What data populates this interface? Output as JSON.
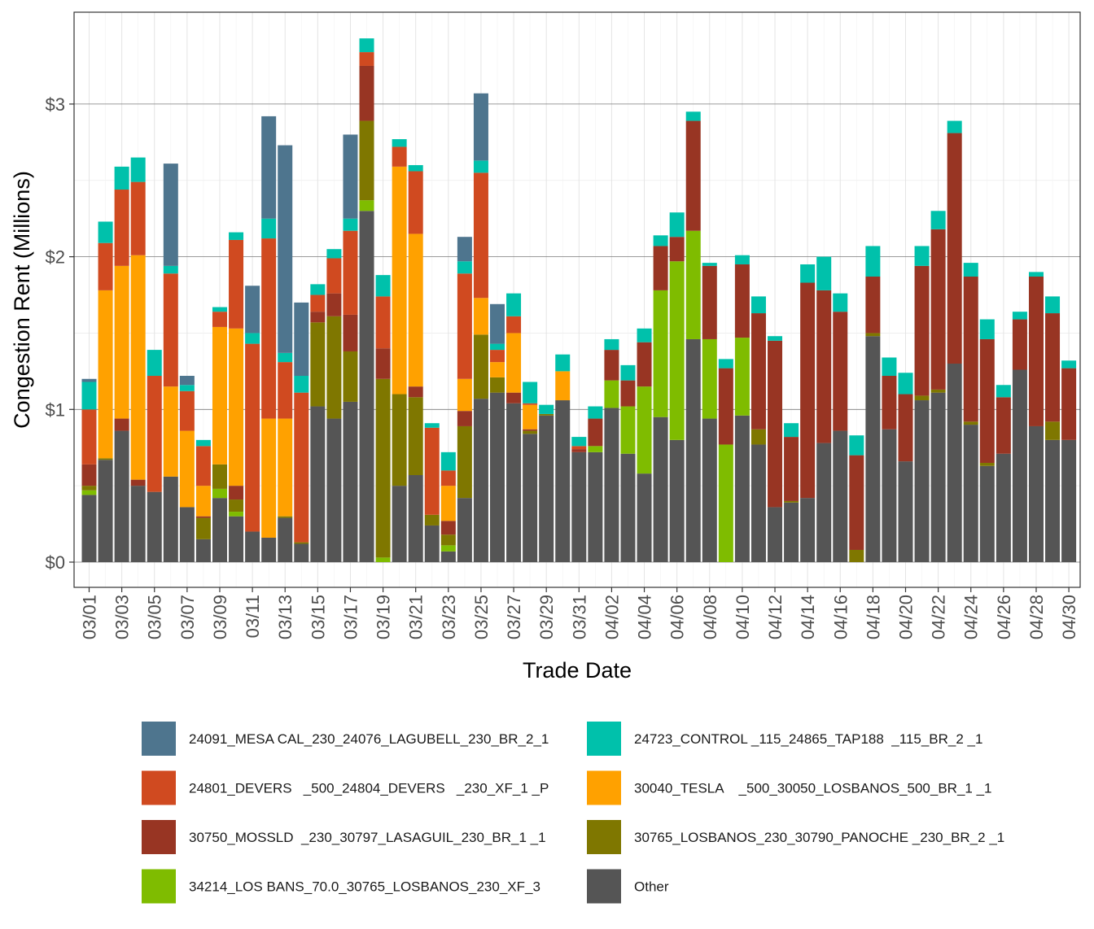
{
  "chart_data": {
    "type": "bar",
    "stacked": true,
    "xlabel": "Trade Date",
    "ylabel": "Congestion Rent (Millions)",
    "ylim": [
      0,
      3.5
    ],
    "y_ticks": [
      0,
      1,
      2,
      3
    ],
    "y_tick_labels": [
      "$0",
      "$1",
      "$2",
      "$3"
    ],
    "x_tick_labels": [
      "03/01",
      "03/03",
      "03/05",
      "03/07",
      "03/09",
      "03/11",
      "03/13",
      "03/15",
      "03/17",
      "03/19",
      "03/21",
      "03/23",
      "03/25",
      "03/27",
      "03/29",
      "03/31",
      "04/02",
      "04/04",
      "04/06",
      "04/08",
      "04/10",
      "04/12",
      "04/14",
      "04/16",
      "04/18",
      "04/20",
      "04/22",
      "04/24",
      "04/26",
      "04/28",
      "04/30"
    ],
    "grid": true,
    "legend_position": "bottom",
    "categories": [
      "03/01",
      "03/02",
      "03/03",
      "03/04",
      "03/05",
      "03/06",
      "03/07",
      "03/08",
      "03/09",
      "03/10",
      "03/11",
      "03/12",
      "03/13",
      "03/14",
      "03/15",
      "03/16",
      "03/17",
      "03/18",
      "03/19",
      "03/20",
      "03/21",
      "03/22",
      "03/23",
      "03/24",
      "03/25",
      "03/26",
      "03/27",
      "03/28",
      "03/29",
      "03/30",
      "03/31",
      "04/01",
      "04/02",
      "04/03",
      "04/04",
      "04/05",
      "04/06",
      "04/07",
      "04/08",
      "04/09",
      "04/10",
      "04/11",
      "04/12",
      "04/13",
      "04/14",
      "04/15",
      "04/16",
      "04/17",
      "04/18",
      "04/19",
      "04/20",
      "04/21",
      "04/22",
      "04/23",
      "04/24",
      "04/25",
      "04/26",
      "04/27",
      "04/28",
      "04/29",
      "04/30"
    ],
    "series": [
      {
        "name": "Other",
        "color": "#555555",
        "values": [
          0.44,
          0.67,
          0.86,
          0.5,
          0.46,
          0.56,
          0.36,
          0.15,
          0.42,
          0.3,
          0.2,
          0.16,
          0.29,
          0.12,
          1.02,
          0.94,
          1.05,
          2.3,
          0.0,
          0.5,
          0.57,
          0.24,
          0.07,
          0.42,
          1.07,
          1.11,
          1.04,
          0.84,
          0.96,
          1.06,
          0.72,
          0.72,
          1.01,
          0.71,
          0.58,
          0.95,
          0.8,
          1.46,
          0.94,
          0.0,
          0.96,
          0.77,
          0.36,
          0.39,
          0.42,
          0.78,
          0.86,
          0.0,
          1.48,
          0.87,
          0.66,
          1.06,
          1.11,
          1.3,
          0.9,
          0.63,
          0.71,
          1.26,
          0.89,
          0.8,
          0.8
        ]
      },
      {
        "name": "34214_LOS BANS_70.0_30765_LOSBANOS_230_XF_3",
        "color": "#7FBC00",
        "values": [
          0.03,
          0.0,
          0.0,
          0.0,
          0.0,
          0.0,
          0.0,
          0.0,
          0.06,
          0.03,
          0.0,
          0.0,
          0.0,
          0.0,
          0.0,
          0.0,
          0.0,
          0.07,
          0.03,
          0.0,
          0.0,
          0.0,
          0.04,
          0.0,
          0.0,
          0.0,
          0.0,
          0.0,
          0.0,
          0.0,
          0.0,
          0.04,
          0.18,
          0.31,
          0.57,
          0.83,
          1.17,
          0.71,
          0.52,
          0.77,
          0.51,
          0.0,
          0.0,
          0.0,
          0.0,
          0.0,
          0.0,
          0.0,
          0.0,
          0.0,
          0.0,
          0.0,
          0.0,
          0.0,
          0.0,
          0.0,
          0.0,
          0.0,
          0.0,
          0.0,
          0.0
        ]
      },
      {
        "name": "30765_LOSBANOS_230_30790_PANOCHE _230_BR_2 _1",
        "color": "#7F7700",
        "values": [
          0.03,
          0.01,
          0.0,
          0.0,
          0.0,
          0.0,
          0.0,
          0.14,
          0.16,
          0.08,
          0.0,
          0.0,
          0.01,
          0.01,
          0.55,
          0.67,
          0.33,
          0.52,
          1.17,
          0.6,
          0.51,
          0.07,
          0.07,
          0.47,
          0.42,
          0.1,
          0.0,
          0.02,
          0.01,
          0.0,
          0.0,
          0.0,
          0.0,
          0.0,
          0.0,
          0.0,
          0.0,
          0.0,
          0.0,
          0.0,
          0.0,
          0.1,
          0.0,
          0.01,
          0.0,
          0.0,
          0.0,
          0.08,
          0.02,
          0.0,
          0.0,
          0.03,
          0.02,
          0.0,
          0.02,
          0.02,
          0.0,
          0.0,
          0.0,
          0.12,
          0.0
        ]
      },
      {
        "name": "30750_MOSSLD  _230_30797_LASAGUIL_230_BR_1 _1",
        "color": "#983523",
        "values": [
          0.14,
          0.0,
          0.08,
          0.04,
          0.0,
          0.0,
          0.0,
          0.01,
          0.0,
          0.09,
          0.0,
          0.0,
          0.0,
          0.0,
          0.07,
          0.15,
          0.24,
          0.36,
          0.2,
          0.0,
          0.07,
          0.0,
          0.09,
          0.1,
          0.0,
          0.0,
          0.07,
          0.01,
          0.0,
          0.0,
          0.02,
          0.18,
          0.2,
          0.17,
          0.29,
          0.29,
          0.16,
          0.72,
          0.48,
          0.5,
          0.48,
          0.76,
          1.09,
          0.42,
          1.41,
          1.0,
          0.78,
          0.62,
          0.37,
          0.35,
          0.44,
          0.85,
          1.05,
          1.51,
          0.95,
          0.81,
          0.37,
          0.33,
          0.98,
          0.71,
          0.47
        ]
      },
      {
        "name": "30040_TESLA    _500_30050_LOSBANOS_500_BR_1 _1",
        "color": "#FFA100",
        "values": [
          0.0,
          1.1,
          1.0,
          1.47,
          0.0,
          0.59,
          0.5,
          0.2,
          0.9,
          1.03,
          0.0,
          0.78,
          0.64,
          0.0,
          0.0,
          0.0,
          0.0,
          0.0,
          0.0,
          1.49,
          1.0,
          0.0,
          0.23,
          0.21,
          0.24,
          0.1,
          0.39,
          0.16,
          0.0,
          0.19,
          0.0,
          0.0,
          0.0,
          0.0,
          0.0,
          0.0,
          0.0,
          0.0,
          0.0,
          0.0,
          0.0,
          0.0,
          0.0,
          0.0,
          0.0,
          0.0,
          0.0,
          0.0,
          0.0,
          0.0,
          0.0,
          0.0,
          0.0,
          0.0,
          0.0,
          0.0,
          0.0,
          0.0,
          0.0,
          0.0,
          0.0
        ]
      },
      {
        "name": "24801_DEVERS   _500_24804_DEVERS   _230_XF_1 _P",
        "color": "#D04A20",
        "values": [
          0.36,
          0.31,
          0.5,
          0.48,
          0.76,
          0.74,
          0.26,
          0.26,
          0.1,
          0.58,
          1.23,
          1.18,
          0.37,
          0.98,
          0.11,
          0.23,
          0.55,
          0.09,
          0.34,
          0.13,
          0.41,
          0.57,
          0.1,
          0.69,
          0.82,
          0.08,
          0.11,
          0.01,
          0.0,
          0.0,
          0.02,
          0.0,
          0.0,
          0.0,
          0.0,
          0.0,
          0.0,
          0.0,
          0.0,
          0.0,
          0.0,
          0.0,
          0.0,
          0.0,
          0.0,
          0.0,
          0.0,
          0.0,
          0.0,
          0.0,
          0.0,
          0.0,
          0.0,
          0.0,
          0.0,
          0.0,
          0.0,
          0.0,
          0.0,
          0.0,
          0.0
        ]
      },
      {
        "name": "24723_CONTROL _115_24865_TAP188  _115_BR_2 _1",
        "color": "#00C1AB",
        "values": [
          0.18,
          0.14,
          0.15,
          0.16,
          0.17,
          0.05,
          0.04,
          0.04,
          0.03,
          0.05,
          0.07,
          0.13,
          0.06,
          0.11,
          0.07,
          0.06,
          0.08,
          0.09,
          0.14,
          0.05,
          0.04,
          0.03,
          0.12,
          0.08,
          0.08,
          0.04,
          0.15,
          0.14,
          0.06,
          0.11,
          0.06,
          0.08,
          0.07,
          0.1,
          0.09,
          0.07,
          0.16,
          0.06,
          0.02,
          0.06,
          0.06,
          0.11,
          0.03,
          0.09,
          0.12,
          0.22,
          0.12,
          0.13,
          0.2,
          0.12,
          0.14,
          0.13,
          0.12,
          0.08,
          0.09,
          0.13,
          0.08,
          0.05,
          0.03,
          0.11,
          0.05
        ]
      },
      {
        "name": "24091_MESA CAL_230_24076_LAGUBELL_230_BR_2_1",
        "color": "#4E758E",
        "values": [
          0.02,
          0.0,
          0.0,
          0.0,
          0.0,
          0.67,
          0.06,
          0.0,
          0.0,
          0.0,
          0.31,
          0.67,
          1.36,
          0.48,
          0.0,
          0.0,
          0.55,
          0.0,
          0.0,
          0.0,
          0.0,
          0.0,
          0.0,
          0.16,
          0.44,
          0.26,
          0.0,
          0.0,
          0.0,
          0.0,
          0.0,
          0.0,
          0.0,
          0.0,
          0.0,
          0.0,
          0.0,
          0.0,
          0.0,
          0.0,
          0.0,
          0.0,
          0.0,
          0.0,
          0.0,
          0.0,
          0.0,
          0.0,
          0.0,
          0.0,
          0.0,
          0.0,
          0.0,
          0.0,
          0.0,
          0.0,
          0.0,
          0.0,
          0.0,
          0.0,
          0.0
        ]
      }
    ],
    "legend": [
      {
        "label": "24091_MESA CAL_230_24076_LAGUBELL_230_BR_2_1",
        "color": "#4E758E"
      },
      {
        "label": "24723_CONTROL _115_24865_TAP188  _115_BR_2 _1",
        "color": "#00C1AB"
      },
      {
        "label": "24801_DEVERS   _500_24804_DEVERS   _230_XF_1 _P",
        "color": "#D04A20"
      },
      {
        "label": "30040_TESLA    _500_30050_LOSBANOS_500_BR_1 _1",
        "color": "#FFA100"
      },
      {
        "label": "30750_MOSSLD  _230_30797_LASAGUIL_230_BR_1 _1",
        "color": "#983523"
      },
      {
        "label": "30765_LOSBANOS_230_30790_PANOCHE _230_BR_2 _1",
        "color": "#7F7700"
      },
      {
        "label": "34214_LOS BANS_70.0_30765_LOSBANOS_230_XF_3",
        "color": "#7FBC00"
      },
      {
        "label": "Other",
        "color": "#555555"
      }
    ]
  }
}
